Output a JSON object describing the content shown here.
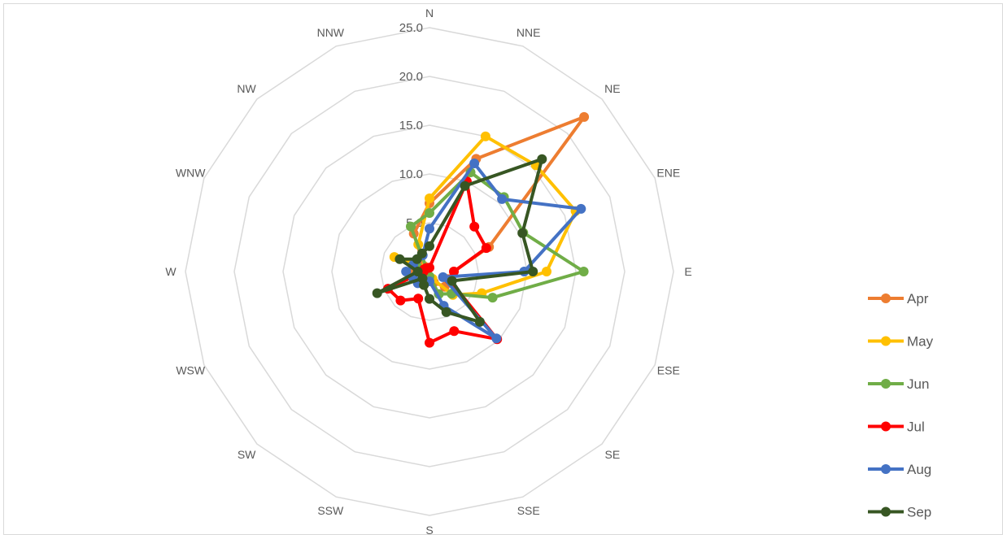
{
  "chart_data": {
    "type": "radar",
    "title": "",
    "categories": [
      "N",
      "NNE",
      "NE",
      "ENE",
      "E",
      "ESE",
      "SE",
      "SSE",
      "S",
      "SSW",
      "SW",
      "WSW",
      "W",
      "WNW",
      "NW",
      "NNW"
    ],
    "r_ticks": [
      "0.0",
      "5.0",
      "10.0",
      "15.0",
      "20.0",
      "25.0"
    ],
    "r_tick_values": [
      0,
      5,
      10,
      15,
      20,
      25
    ],
    "rlim": [
      0,
      25
    ],
    "grid": true,
    "legend_position": "right",
    "series": [
      {
        "name": "Apr",
        "color": "#ED7D31",
        "values": [
          7.0,
          12.5,
          22.4,
          6.6,
          2.5,
          2.0,
          2.2,
          1.2,
          0.8,
          0.5,
          0.6,
          0.8,
          1.6,
          0.8,
          0.8,
          4.2
        ]
      },
      {
        "name": "May",
        "color": "#FFC000",
        "values": [
          7.5,
          15.0,
          15.4,
          16.2,
          12.0,
          5.8,
          3.4,
          0.8,
          0.6,
          0.5,
          0.4,
          0.5,
          0.8,
          3.9,
          0.6,
          3.0
        ]
      },
      {
        "name": "Jun",
        "color": "#70AD47",
        "values": [
          6.0,
          11.0,
          10.8,
          10.4,
          15.8,
          7.0,
          3.2,
          2.5,
          0.5,
          0.5,
          0.4,
          0.4,
          0.6,
          1.4,
          0.4,
          5.0
        ]
      },
      {
        "name": "Jul",
        "color": "#FF0000",
        "values": [
          0.4,
          10.0,
          6.5,
          6.3,
          2.5,
          2.2,
          9.8,
          6.6,
          7.3,
          3.0,
          4.2,
          4.6,
          0.6,
          0.6,
          0.5,
          0.4
        ]
      },
      {
        "name": "Aug",
        "color": "#4472C4",
        "values": [
          4.4,
          12.0,
          10.5,
          16.8,
          9.7,
          1.5,
          9.7,
          3.8,
          1.0,
          1.4,
          1.7,
          1.8,
          2.4,
          1.8,
          1.8,
          1.8
        ]
      },
      {
        "name": "Sep",
        "color": "#375623",
        "values": [
          2.6,
          9.5,
          16.3,
          10.3,
          10.6,
          2.5,
          7.3,
          4.5,
          2.8,
          1.5,
          1.0,
          5.8,
          1.2,
          3.3,
          1.8,
          2.0
        ]
      }
    ]
  }
}
